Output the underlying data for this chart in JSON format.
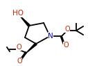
{
  "bg_color": "#ffffff",
  "ring_color": "#000000",
  "atom_colors": {
    "N": "#0000bb",
    "O": "#cc2200",
    "C": "#000000"
  },
  "bond_width": 1.3,
  "wedge_color": "#000000",
  "font_size": 7.0
}
